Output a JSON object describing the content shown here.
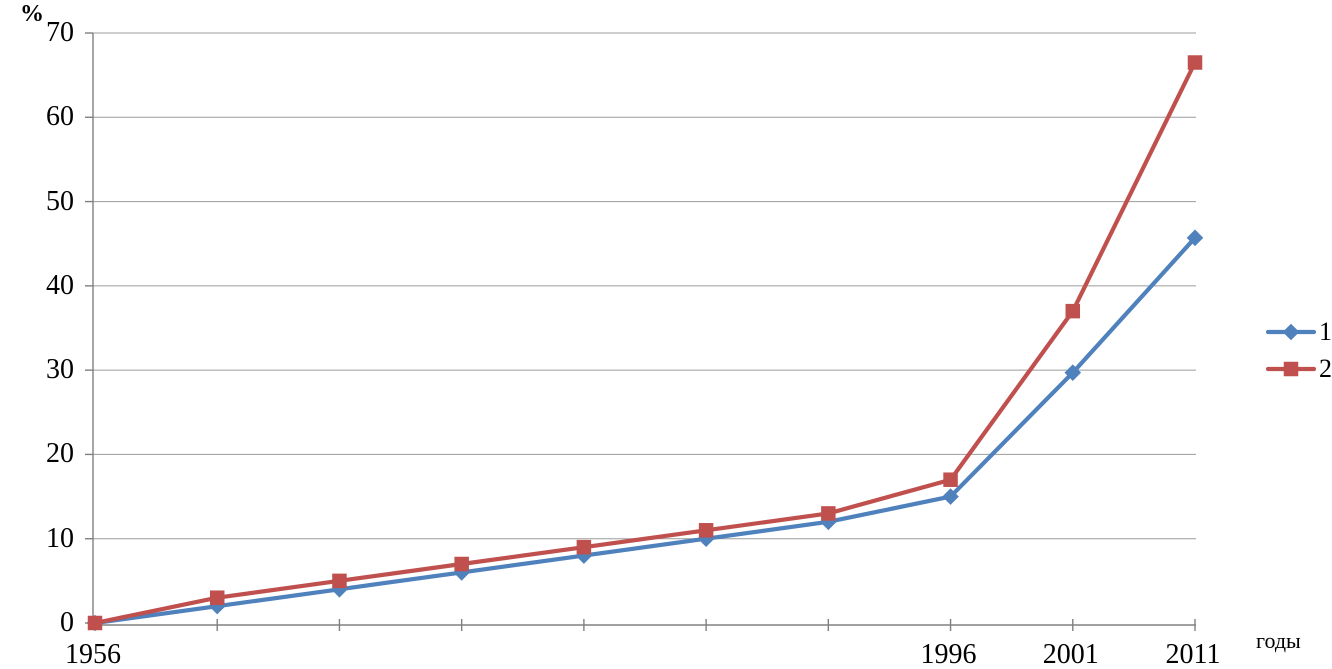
{
  "chart_data": {
    "type": "line",
    "title": "",
    "ylabel": "%",
    "xlabel": "годы",
    "ylim": [
      0,
      70
    ],
    "yticks": [
      0,
      10,
      20,
      30,
      40,
      50,
      60,
      70
    ],
    "n_points": 10,
    "x_tick_labels": [
      {
        "label": "1956",
        "index": 0
      },
      {
        "label": "1996",
        "index": 7
      },
      {
        "label": "2001",
        "index": 8
      },
      {
        "label": "2011",
        "index": 9
      }
    ],
    "grid": "horizontal-only",
    "legend_position": "right",
    "series": [
      {
        "name": "1",
        "marker": "diamond",
        "color": "#4F81BD",
        "values": [
          0,
          2,
          4,
          6,
          8,
          10,
          12,
          15,
          29.7,
          45.7
        ]
      },
      {
        "name": "2",
        "marker": "square",
        "color": "#C0504D",
        "values": [
          0,
          3,
          5,
          7,
          9,
          11,
          13,
          17,
          37,
          66.5
        ]
      }
    ],
    "axis_color": "#808080",
    "grid_color": "#9C9C9C",
    "text_color": "#000000"
  }
}
